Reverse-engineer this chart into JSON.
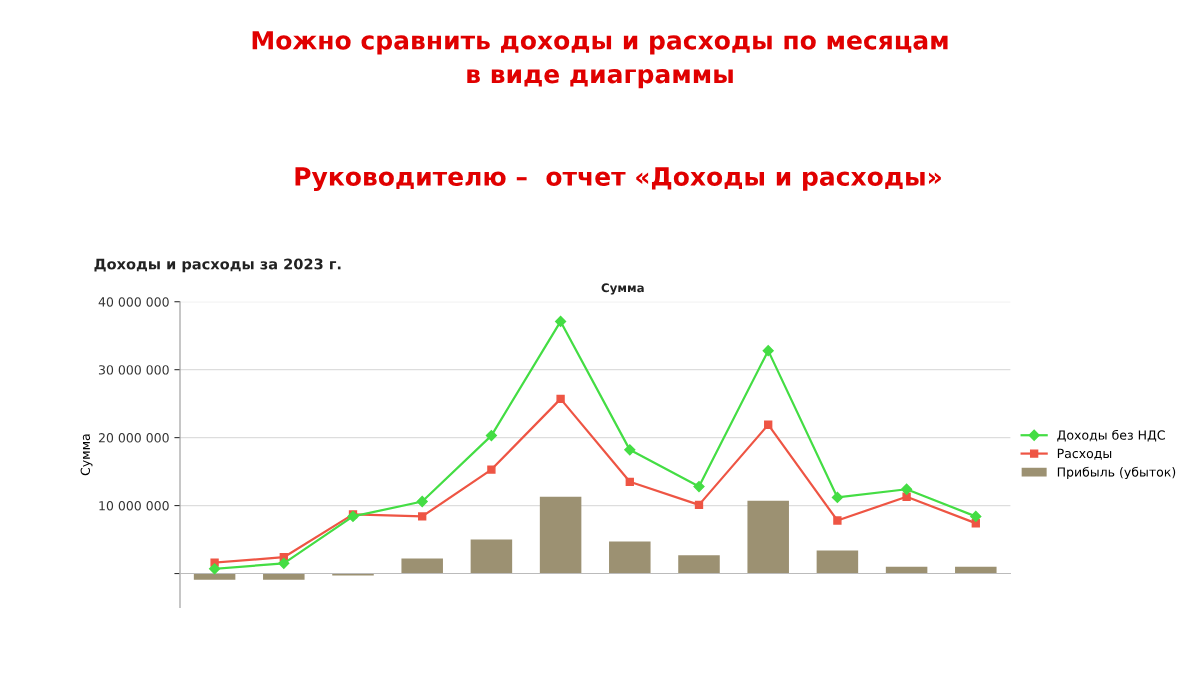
{
  "chart_data": {
    "type": "line",
    "title": "Можно сравнить доходы и расходы по месяцам\nв виде диаграммы",
    "subtitle": "Руководителю –  отчет «Доходы и расходы»",
    "annotations": [
      "Доходы и расходы за 2023 г.",
      "Сумма"
    ],
    "ylabel": "Сумма",
    "categories": [
      null,
      null,
      null,
      null,
      null,
      null,
      null,
      null,
      null,
      null,
      null,
      null
    ],
    "series": [
      {
        "name": "Доходы без НДС",
        "marker": "diamond",
        "color": "#44dd44",
        "values": [
          700000,
          1500000,
          8400000,
          10600000,
          20300000,
          37100000,
          18200000,
          12800000,
          32800000,
          11200000,
          12400000,
          8400000
        ]
      },
      {
        "name": "Расходы",
        "marker": "square",
        "color": "#ee5544",
        "values": [
          1600000,
          2400000,
          8700000,
          8400000,
          15300000,
          25700000,
          13500000,
          10100000,
          21900000,
          7800000,
          11300000,
          7400000
        ]
      },
      {
        "name": "Прибыль (убыток)",
        "type": "bar",
        "color": "#9c9172",
        "values": [
          -900000,
          -900000,
          -300000,
          2200000,
          5000000,
          11300000,
          4700000,
          2700000,
          10700000,
          3400000,
          1000000,
          1000000
        ]
      }
    ],
    "ylim": [
      -5000000,
      40000000
    ],
    "yticks": [
      {
        "value": 0,
        "label": null
      },
      {
        "value": 10000000,
        "label": "10 000 000"
      },
      {
        "value": 20000000,
        "label": "20 000 000"
      },
      {
        "value": 30000000,
        "label": "30 000 000"
      },
      {
        "value": 40000000,
        "label": "40 000 000"
      }
    ],
    "grid": "y",
    "legend": "right",
    "tick_labels": "y"
  }
}
